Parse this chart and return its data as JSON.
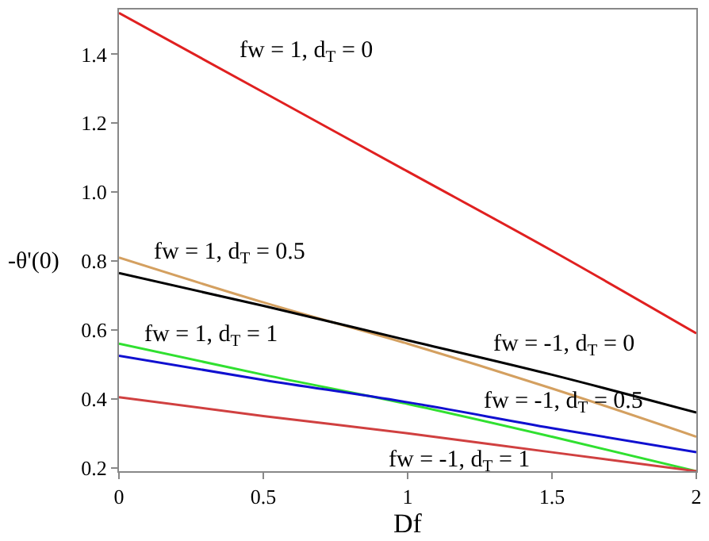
{
  "chart_data": {
    "type": "line",
    "xlabel": "Df",
    "ylabel": "-θ'(0)",
    "x": [
      0,
      0.5,
      1,
      1.5,
      2
    ],
    "series": [
      {
        "name": "fw = 1, d$_{T}$ = 0",
        "color": "#e02020",
        "values": [
          1.52,
          1.29,
          1.06,
          0.83,
          0.59
        ]
      },
      {
        "name": "fw = 1, d$_{T}$ = 0.5",
        "color": "#d4a060",
        "values": [
          0.81,
          0.68,
          0.56,
          0.43,
          0.29
        ]
      },
      {
        "name": "fw = -1, d$_{T}$ = 0",
        "color": "#000000",
        "values": [
          0.765,
          0.67,
          0.57,
          0.47,
          0.36
        ]
      },
      {
        "name": "fw = 1, d$_{T}$ = 1",
        "color": "#30e030",
        "values": [
          0.56,
          0.47,
          0.385,
          0.29,
          0.19
        ]
      },
      {
        "name": "fw = -1, d$_{T}$ = 0.5",
        "color": "#1010d0",
        "values": [
          0.525,
          0.455,
          0.39,
          0.315,
          0.245
        ]
      },
      {
        "name": "fw = -1, d$_{T}$ = 1",
        "color": "#d04040",
        "values": [
          0.405,
          0.35,
          0.3,
          0.245,
          0.19
        ]
      }
    ],
    "xlim": [
      0,
      2
    ],
    "xticks": [
      0,
      0.5,
      1,
      1.5,
      2
    ],
    "ylim": [
      0.19,
      1.53
    ],
    "yticks": [
      0.2,
      0.4,
      0.6,
      0.8,
      {
        "value": 1,
        "label": "1.0"
      },
      1.2,
      1.4
    ],
    "grid": false,
    "legend": false,
    "marker": "none",
    "line_style": "solid"
  }
}
